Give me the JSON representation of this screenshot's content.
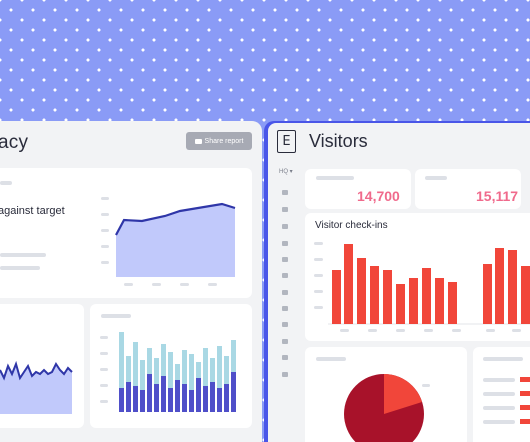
{
  "left": {
    "title": "acy",
    "share_label": "Share report",
    "target_label": "against target"
  },
  "right": {
    "title": "Visitors",
    "logo_glyph": "E",
    "location": "HQ",
    "stat1": "14,700",
    "stat2": "15,117",
    "checkins_label": "Visitor check-ins"
  },
  "colors": {
    "background": "#8a9bf6",
    "accent_blue": "#4a56e8",
    "area_fill": "#c1c9fb",
    "line": "#2f36a8",
    "bar_dark": "#4f4fc9",
    "bar_light": "#a9d8e4",
    "bar_red": "#f1463a",
    "stat_pink": "#f06a8c",
    "pie_dark": "#a8122a",
    "pie_light": "#f1463a"
  },
  "icons": {
    "sidebar": [
      "home-icon",
      "grid-icon",
      "ticket-icon",
      "list-icon",
      "user-icon",
      "chat-icon",
      "building-icon",
      "cart-icon",
      "chart-icon",
      "document-icon",
      "puzzle-icon",
      "gear-icon"
    ],
    "share": "mail-icon"
  }
}
